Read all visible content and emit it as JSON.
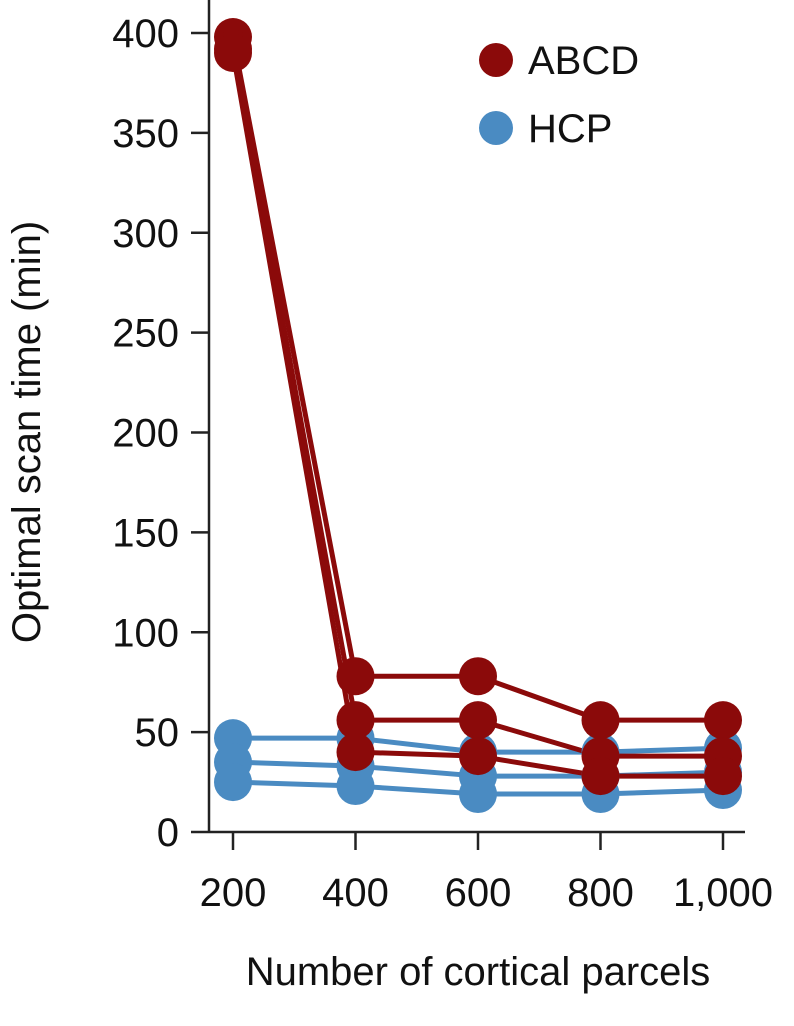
{
  "chart_data": {
    "type": "line",
    "xlabel": "Number of cortical parcels",
    "ylabel": "Optimal scan time (min)",
    "x": [
      200,
      400,
      600,
      800,
      1000
    ],
    "x_tick_labels": [
      "200",
      "400",
      "600",
      "800",
      "1,000"
    ],
    "y_ticks": [
      0,
      50,
      100,
      150,
      200,
      250,
      300,
      350,
      400
    ],
    "y_tick_labels": [
      "0",
      "50",
      "100",
      "150",
      "200",
      "250",
      "300",
      "350",
      "400"
    ],
    "ylim": [
      0,
      400
    ],
    "xlim": [
      200,
      1000
    ],
    "grid": false,
    "legend_position": "top-right",
    "legend": [
      {
        "label": "ABCD",
        "color": "#8b0a0a"
      },
      {
        "label": "HCP",
        "color": "#4a8bc2"
      }
    ],
    "series": [
      {
        "group": "ABCD",
        "color": "#8b0a0a",
        "values": [
          398,
          78,
          78,
          56,
          56
        ]
      },
      {
        "group": "ABCD",
        "color": "#8b0a0a",
        "values": [
          392,
          56,
          56,
          38,
          38
        ]
      },
      {
        "group": "ABCD",
        "color": "#8b0a0a",
        "values": [
          390,
          40,
          38,
          28,
          28
        ]
      },
      {
        "group": "HCP",
        "color": "#4a8bc2",
        "values": [
          47,
          47,
          40,
          40,
          42
        ]
      },
      {
        "group": "HCP",
        "color": "#4a8bc2",
        "values": [
          35,
          33,
          28,
          28,
          30
        ]
      },
      {
        "group": "HCP",
        "color": "#4a8bc2",
        "values": [
          25,
          23,
          19,
          19,
          21
        ]
      }
    ]
  }
}
